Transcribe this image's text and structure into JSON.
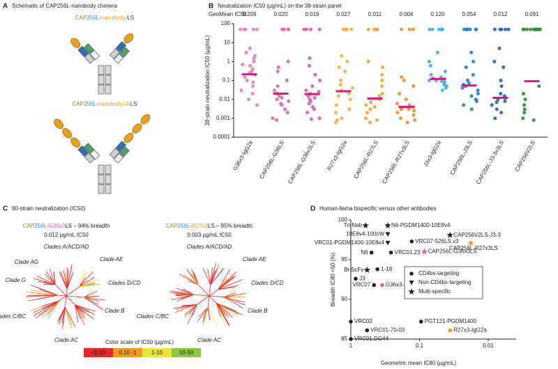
{
  "panel_a": {
    "label": "A",
    "title": "Schematic of CAP256L-nanobody chimera",
    "constructs": [
      {
        "parts": [
          "CAP",
          "256L",
          "-",
          "nanobody",
          "-LS"
        ],
        "colors": [
          "#8a8a2a",
          "#3a8fd0",
          "#333333",
          "#e8a020",
          "#333333"
        ]
      },
      {
        "parts": [
          "CAP",
          "256L",
          "-",
          "nanobodyx3",
          "-LS"
        ],
        "colors": [
          "#8a8a2a",
          "#3a8fd0",
          "#333333",
          "#e8a020",
          "#333333"
        ]
      }
    ]
  },
  "panel_c": {
    "label": "C",
    "title": "80-strain neutralization (IC50)",
    "trees": [
      {
        "parts": [
          "CAP",
          "256L",
          "-",
          "G36x3",
          "LS – 94% breadth"
        ],
        "colors": [
          "#8a8a2a",
          "#3a8fd0",
          "#333333",
          "#d361a8",
          "#222222"
        ],
        "subtitle": "0.012 µg/mL IC50",
        "clades": [
          "Clades A/ACD/AD",
          "Clade AE",
          "Clades D/CD",
          "Clade B",
          "Clade AC",
          "Clades C/BC",
          "Clade G",
          "Clade AG"
        ]
      },
      {
        "parts": [
          "CAP",
          "256L",
          "-",
          "R27x3",
          "LS – 95% breadth"
        ],
        "colors": [
          "#8a8a2a",
          "#3a8fd0",
          "#333333",
          "#e8a020",
          "#222222"
        ],
        "subtitle": "0.003 µg/mL IC50",
        "clades": [
          "Clades A/ACD/AD",
          "Clade AE",
          "Clades D/CD",
          "Clade B",
          "Clade AC",
          "Clades C/BC"
        ]
      }
    ],
    "color_scale": {
      "title": "Color scale of IC50 (µg/mL)",
      "labels": [
        "<0.10",
        "0.10 -1",
        "1-10",
        "10-50"
      ],
      "colors": [
        "#e8262a",
        "#f39a1e",
        "#e8e43a",
        "#8dc63f"
      ]
    }
  },
  "chart_data": [
    {
      "type": "strip",
      "label": "B",
      "title": "Neutralization IC50 (µg/mL) on the 38-strain panel",
      "ylabel": "38-strain neutralization IC50 (µg/mL)",
      "yscale": "log",
      "ylim": [
        0.0001,
        100
      ],
      "yticks": [
        0.0001,
        0.001,
        0.01,
        0.1,
        1,
        10,
        100
      ],
      "categories": [
        "G36x3-IgG2a",
        "CAP256L-G36LS",
        "CAP256L-G36x3LS",
        "R27x3-IgG2a",
        "CAP256L-R27LS",
        "CAP256L-R27x3LS",
        "J3x3-IgG2a",
        "CAP256L-J3LS",
        "CAP256L-J3-3x3LS",
        "CAP256V2LS"
      ],
      "stat_label": "GeoMean IC50",
      "geomean": [
        0.209,
        0.02,
        0.019,
        0.027,
        0.011,
        0.004,
        0.12,
        0.054,
        0.012,
        0.091
      ],
      "value_labels": [
        "0.209",
        "0.020",
        "0.019",
        "0.027",
        "0.011",
        "0.004",
        "0.120",
        "0.054",
        "0.012",
        "0.091"
      ],
      "value_label_colors": [
        "#222222",
        "#222222",
        "#e8262a",
        "#222222",
        "#222222",
        "#e8262a",
        "#222222",
        "#222222",
        "#e8262a",
        "#222222"
      ],
      "mean_color": "#e0157f",
      "points": [
        {
          "color": "#e77fb9",
          "values": [
            50,
            50,
            50,
            50,
            50,
            5,
            3,
            1.5,
            1,
            0.6,
            0.4,
            0.3,
            0.2,
            0.15,
            0.1,
            0.08,
            0.05,
            0.03,
            0.02,
            0.01,
            0.005,
            2,
            0.7,
            0.25
          ]
        },
        {
          "color": "#e06aaa",
          "values": [
            50,
            50,
            50,
            50,
            50,
            1,
            0.5,
            0.3,
            0.1,
            0.05,
            0.03,
            0.02,
            0.015,
            0.01,
            0.008,
            0.005,
            0.003,
            0.002,
            0.001,
            0.0008,
            0.012,
            0.006
          ]
        },
        {
          "color": "#d8609f",
          "values": [
            50,
            50,
            50,
            50,
            1.5,
            0.6,
            0.2,
            0.1,
            0.05,
            0.03,
            0.02,
            0.015,
            0.01,
            0.008,
            0.006,
            0.004,
            0.003,
            0.002,
            0.001,
            0.0009,
            0.025,
            0.012
          ]
        },
        {
          "color": "#f2b24c",
          "values": [
            50,
            50,
            50,
            50,
            50,
            2,
            1,
            0.5,
            0.3,
            0.1,
            0.06,
            0.03,
            0.02,
            0.01,
            0.005,
            0.003,
            0.002,
            0.001,
            0.0008,
            0.0006,
            0.04,
            0.015
          ]
        },
        {
          "color": "#eda53d",
          "values": [
            50,
            50,
            50,
            50,
            1,
            0.5,
            0.2,
            0.1,
            0.05,
            0.02,
            0.01,
            0.007,
            0.005,
            0.003,
            0.002,
            0.001,
            0.0008,
            0.0006,
            0.015,
            0.004
          ]
        },
        {
          "color": "#e8902f",
          "values": [
            50,
            50,
            50,
            0.15,
            0.1,
            0.05,
            0.02,
            0.01,
            0.006,
            0.004,
            0.003,
            0.0025,
            0.002,
            0.0015,
            0.001,
            0.0008,
            0.0006,
            0.005,
            0.0035,
            0.003
          ]
        },
        {
          "color": "#45b0e0",
          "values": [
            50,
            50,
            50,
            50,
            50,
            50,
            3,
            1,
            0.6,
            0.3,
            0.2,
            0.15,
            0.12,
            0.1,
            0.08,
            0.06,
            0.05,
            0.04,
            0.03,
            0.1,
            0.13,
            0.09
          ]
        },
        {
          "color": "#2a7ec7",
          "values": [
            50,
            50,
            50,
            50,
            50,
            50,
            50,
            3,
            1,
            0.5,
            0.2,
            0.1,
            0.06,
            0.05,
            0.03,
            0.02,
            0.015,
            0.01,
            0.008,
            0.005,
            0.003,
            0.04,
            0.07
          ]
        },
        {
          "color": "#2d64b0",
          "values": [
            50,
            50,
            50,
            50,
            50,
            5,
            1,
            0.5,
            0.1,
            0.05,
            0.02,
            0.012,
            0.01,
            0.008,
            0.005,
            0.003,
            0.002,
            0.001,
            0.015,
            0.007
          ]
        },
        {
          "color": "#3a8a3a",
          "values": [
            50,
            50,
            50,
            50,
            50,
            50,
            50,
            50,
            50,
            50,
            50,
            50,
            50,
            50,
            0.05,
            0.02,
            0.01,
            0.005,
            0.003,
            0.002,
            0.001,
            0.0008
          ]
        }
      ]
    },
    {
      "type": "scatter",
      "label": "D",
      "title": "Human-llama bispecific versus other antibodies",
      "xlabel": "Geometric mean IC80 (µg/mL)",
      "ylabel": "Breadth IC80 <50 (%)",
      "xscale": "log",
      "xlim": [
        1,
        0.01
      ],
      "xticks": [
        1,
        0.1,
        0.01
      ],
      "ylim": [
        85,
        100
      ],
      "yticks": [
        85,
        90,
        95,
        100
      ],
      "x": [
        0.61,
        0.29,
        0.29,
        0.036,
        0.13,
        0.29,
        0.018,
        0.5,
        0.26,
        0.085,
        0.58,
        0.41,
        0.85,
        0.46,
        0.35,
        1,
        0.095,
        0.58,
        0.036,
        1
      ],
      "y": [
        99.3,
        99.3,
        98.2,
        98.1,
        97.3,
        97.1,
        97.1,
        95.9,
        95.9,
        96,
        93.7,
        93.8,
        92.6,
        91.8,
        91.8,
        87.2,
        87.2,
        86.1,
        86.1,
        85
      ],
      "point_labels": [
        "Tri-Nab",
        "N6-PGDM1400-10E8v4",
        "10E8v4-100cW",
        "CAP256V2LS-J3-3",
        "VRC07-526LS.v3",
        "VRC01-PGDM1400-10E8v4",
        "CAP256L-R27x3LS",
        "N6",
        "VRC01.23",
        "CAP256L-G36x3LS",
        "Bi-ScFv",
        "1-18",
        "J3",
        "VRC07",
        "G36x3-IgG2a",
        "VRC02",
        "PGT121-PGDM1400",
        "VRC01-70-03",
        "R27x3-IgG2a",
        "VRC01.DG44"
      ],
      "markers": [
        "star",
        "star",
        "triangle",
        "star",
        "circle",
        "triangle",
        "star",
        "circle",
        "circle",
        "star",
        "star",
        "circle",
        "circle",
        "circle",
        "circle",
        "circle",
        "circle",
        "circle",
        "circle",
        "circle"
      ],
      "colors": [
        "#222222",
        "#222222",
        "#222222",
        "#222222",
        "#222222",
        "#222222",
        "#e8a020",
        "#222222",
        "#222222",
        "#d361a8",
        "#222222",
        "#222222",
        "#222222",
        "#222222",
        "#d361a8",
        "#222222",
        "#222222",
        "#222222",
        "#e8a020",
        "#222222"
      ],
      "legend": [
        {
          "label": "CD4bs-targeting",
          "marker": "circle"
        },
        {
          "label": "Non-CD4bs-targeting",
          "marker": "triangle"
        },
        {
          "label": "Multi-specific",
          "marker": "star"
        }
      ],
      "legend_position": "center-right"
    }
  ]
}
